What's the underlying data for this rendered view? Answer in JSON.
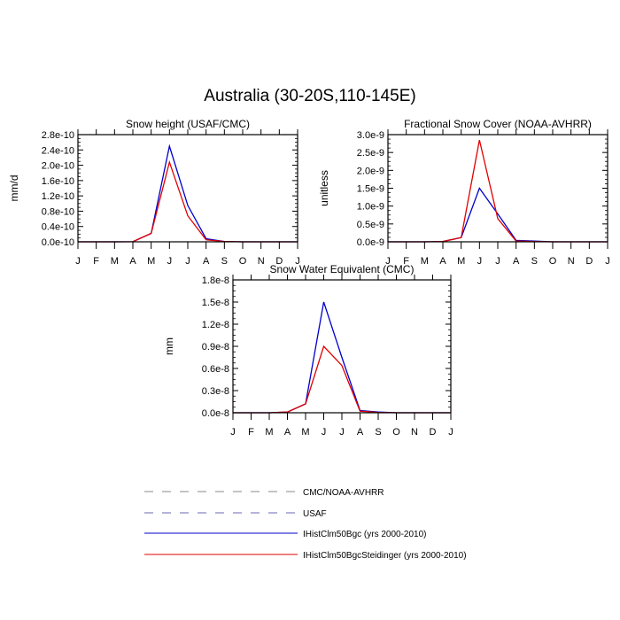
{
  "title": "Australia (30-20S,110-145E)",
  "months": [
    "J",
    "F",
    "M",
    "A",
    "M",
    "J",
    "J",
    "A",
    "S",
    "O",
    "N",
    "D",
    "J"
  ],
  "legend": [
    {
      "label": "CMC/NOAA-AVHRR",
      "color": "#888888",
      "dash": true
    },
    {
      "label": "USAF",
      "color": "#6a6ab0",
      "dash": true
    },
    {
      "label": "IHistClm50Bgc (yrs 2000-2010)",
      "color": "#0000cc",
      "dash": false
    },
    {
      "label": "IHistClm50BgcSteidinger (yrs 2000-2010)",
      "color": "#e00000",
      "dash": false
    }
  ],
  "chart_data": [
    {
      "type": "line",
      "title": "Snow height (USAF/CMC)",
      "ylabel": "mm/d",
      "ylim": [
        0,
        2.8e-10
      ],
      "yticks": [
        "0.0e-10",
        "0.4e-10",
        "0.8e-10",
        "1.2e-10",
        "1.6e-10",
        "2.0e-10",
        "2.4e-10",
        "2.8e-10"
      ],
      "x": [
        "J",
        "F",
        "M",
        "A",
        "M",
        "J",
        "J",
        "A",
        "S",
        "O",
        "N",
        "D",
        "J"
      ],
      "series": [
        {
          "name": "IHistClm50Bgc (yrs 2000-2010)",
          "color": "#0000cc",
          "values": [
            0,
            0,
            0,
            2e-13,
            2.2e-11,
            2.5e-10,
            9.5e-11,
            8e-12,
            1e-12,
            0,
            0,
            0,
            0
          ]
        },
        {
          "name": "IHistClm50BgcSteidinger (yrs 2000-2010)",
          "color": "#e00000",
          "values": [
            0,
            0,
            0,
            2e-13,
            2.2e-11,
            2.08e-10,
            6.8e-11,
            5e-12,
            1e-12,
            0,
            0,
            0,
            0
          ]
        }
      ]
    },
    {
      "type": "line",
      "title": "Fractional Snow Cover (NOAA-AVHRR)",
      "ylabel": "unitless",
      "ylim": [
        0,
        3e-09
      ],
      "yticks": [
        "0.0e-9",
        "0.5e-9",
        "1.0e-9",
        "1.5e-9",
        "2.0e-9",
        "2.5e-9",
        "3.0e-9"
      ],
      "x": [
        "J",
        "F",
        "M",
        "A",
        "M",
        "J",
        "J",
        "A",
        "S",
        "O",
        "N",
        "D",
        "J"
      ],
      "series": [
        {
          "name": "IHistClm50Bgc (yrs 2000-2010)",
          "color": "#0000cc",
          "values": [
            0,
            0,
            0,
            1e-11,
            1.2e-10,
            1.5e-09,
            7.8e-10,
            4e-11,
            2e-11,
            0,
            0,
            0,
            0
          ]
        },
        {
          "name": "IHistClm50BgcSteidinger (yrs 2000-2010)",
          "color": "#e00000",
          "values": [
            0,
            0,
            0,
            1e-11,
            1.2e-10,
            2.85e-09,
            6.5e-10,
            2e-11,
            1e-11,
            0,
            0,
            0,
            0
          ]
        }
      ]
    },
    {
      "type": "line",
      "title": "Snow Water Equivalent (CMC)",
      "ylabel": "mm",
      "ylim": [
        0,
        1.8e-08
      ],
      "yticks": [
        "0.0e-8",
        "0.3e-8",
        "0.6e-8",
        "0.9e-8",
        "1.2e-8",
        "1.5e-8",
        "1.8e-8"
      ],
      "x": [
        "J",
        "F",
        "M",
        "A",
        "M",
        "J",
        "J",
        "A",
        "S",
        "O",
        "N",
        "D",
        "J"
      ],
      "series": [
        {
          "name": "IHistClm50Bgc (yrs 2000-2010)",
          "color": "#0000cc",
          "values": [
            0,
            0,
            0,
            1e-10,
            1.2e-09,
            1.5e-08,
            7.5e-09,
            3e-10,
            1e-10,
            0,
            0,
            0,
            0
          ]
        },
        {
          "name": "IHistClm50BgcSteidinger (yrs 2000-2010)",
          "color": "#e00000",
          "values": [
            0,
            0,
            0,
            1e-10,
            1.2e-09,
            9e-09,
            6.4e-09,
            2e-10,
            5e-11,
            0,
            0,
            0,
            0
          ]
        }
      ]
    }
  ]
}
